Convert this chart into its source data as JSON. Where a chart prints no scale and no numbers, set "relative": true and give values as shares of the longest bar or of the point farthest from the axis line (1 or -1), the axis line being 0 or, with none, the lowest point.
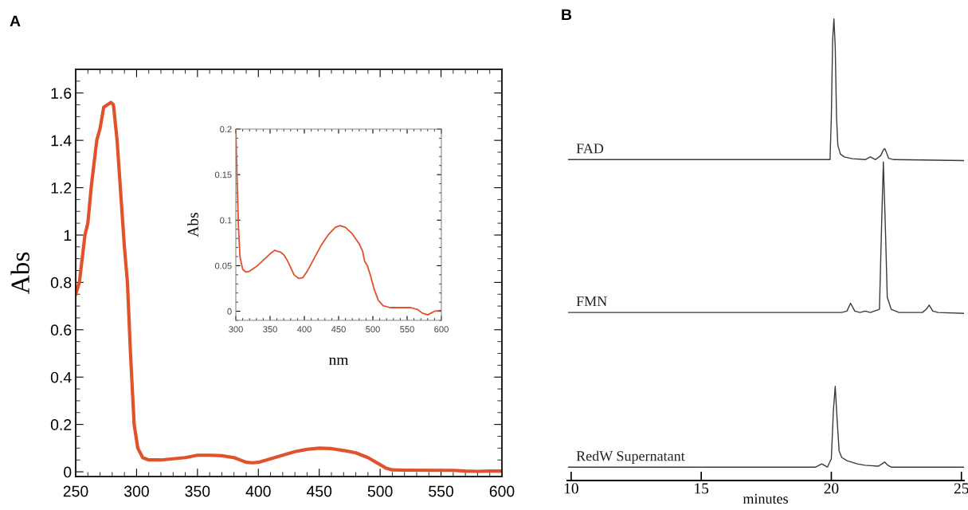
{
  "chart_data": [
    {
      "type": "line",
      "title": "A",
      "ylabel": "Abs",
      "xlim": [
        250,
        600
      ],
      "xticks": [
        250,
        300,
        350,
        400,
        450,
        500,
        550,
        600
      ],
      "ylim": [
        -0.02,
        1.7
      ],
      "yticks": [
        0,
        0.2,
        0.4,
        0.6,
        0.8,
        1,
        1.2,
        1.4,
        1.6
      ],
      "grid": false,
      "legend": false,
      "series": [
        {
          "color": "#e0522a",
          "x": [
            250,
            253,
            257.6,
            260,
            262.7,
            265,
            267.3,
            270,
            273,
            276,
            279,
            281,
            284,
            286,
            288,
            290,
            292.5,
            295,
            298,
            301,
            305,
            310,
            320,
            330,
            340,
            350,
            360,
            370,
            380,
            390,
            395,
            400,
            410,
            420,
            430,
            440,
            450,
            460,
            470,
            480,
            490,
            500,
            505,
            510,
            520,
            550,
            560,
            570,
            580,
            590,
            600
          ],
          "values": [
            0.75,
            0.8,
            1.0,
            1.05,
            1.2,
            1.3,
            1.4,
            1.45,
            1.54,
            1.55,
            1.56,
            1.55,
            1.4,
            1.25,
            1.1,
            0.95,
            0.8,
            0.5,
            0.2,
            0.1,
            0.06,
            0.05,
            0.05,
            0.055,
            0.06,
            0.07,
            0.07,
            0.068,
            0.06,
            0.04,
            0.038,
            0.04,
            0.055,
            0.07,
            0.085,
            0.095,
            0.1,
            0.098,
            0.09,
            0.08,
            0.06,
            0.03,
            0.015,
            0.008,
            0.007,
            0.006,
            0.006,
            0.003,
            0.002,
            0.003,
            0.003
          ]
        }
      ]
    },
    {
      "type": "line",
      "xlabel": "nm",
      "ylabel": "Abs",
      "xlim": [
        300,
        600
      ],
      "xticks": [
        300,
        350,
        400,
        450,
        500,
        550,
        600
      ],
      "ylim": [
        -0.01,
        0.2
      ],
      "yticks": [
        0,
        0.05,
        0.1,
        0.15,
        0.2
      ],
      "grid": false,
      "legend": false,
      "series": [
        {
          "color": "#e0522a",
          "x": [
            300,
            302,
            304,
            306,
            310,
            315,
            320,
            330,
            340,
            350,
            357,
            360,
            365,
            370,
            375,
            380,
            385,
            392,
            398,
            405,
            415,
            425,
            435,
            445,
            452,
            460,
            470,
            480,
            485,
            488,
            492,
            497,
            502,
            508,
            515,
            525,
            540,
            555,
            565,
            572,
            580,
            585,
            590,
            600
          ],
          "values": [
            0.2,
            0.14,
            0.09,
            0.06,
            0.046,
            0.043,
            0.044,
            0.049,
            0.056,
            0.063,
            0.067,
            0.066,
            0.065,
            0.062,
            0.056,
            0.048,
            0.04,
            0.036,
            0.037,
            0.045,
            0.059,
            0.073,
            0.084,
            0.092,
            0.094,
            0.092,
            0.085,
            0.074,
            0.066,
            0.055,
            0.05,
            0.038,
            0.024,
            0.012,
            0.006,
            0.004,
            0.004,
            0.004,
            0.002,
            -0.002,
            -0.004,
            -0.002,
            0.0,
            0.001
          ]
        }
      ]
    },
    {
      "type": "line",
      "title": "B",
      "xlabel": "minutes",
      "relative": true,
      "xlim": [
        9.85,
        25.1
      ],
      "xticks": [
        10,
        15,
        20,
        25
      ],
      "tick_labels": "x",
      "grid": false,
      "legend": false,
      "series": [
        {
          "name": "FAD",
          "color": "#3a3a3a",
          "x": [
            9.9,
            15,
            19.8,
            19.95,
            20.0,
            20.05,
            20.1,
            20.15,
            20.2,
            20.25,
            20.35,
            20.5,
            20.8,
            21.3,
            21.5,
            21.7,
            21.9,
            22.0,
            22.05,
            22.1,
            22.2,
            22.4,
            25.1
          ],
          "values": [
            0.695,
            0.695,
            0.695,
            0.695,
            0.787,
            0.954,
            1.0,
            0.939,
            0.787,
            0.726,
            0.707,
            0.701,
            0.697,
            0.695,
            0.701,
            0.695,
            0.704,
            0.716,
            0.719,
            0.713,
            0.698,
            0.695,
            0.693
          ]
        },
        {
          "name": "FMN",
          "color": "#3a3a3a",
          "x": [
            9.9,
            15,
            20.4,
            20.6,
            20.74,
            20.9,
            21.1,
            21.3,
            21.5,
            21.85,
            21.92,
            22.0,
            22.08,
            22.15,
            22.3,
            22.6,
            23.5,
            23.65,
            23.76,
            23.9,
            24.1,
            25.1
          ],
          "values": [
            0.364,
            0.364,
            0.364,
            0.367,
            0.384,
            0.367,
            0.364,
            0.367,
            0.364,
            0.371,
            0.527,
            0.69,
            0.543,
            0.397,
            0.371,
            0.364,
            0.364,
            0.371,
            0.38,
            0.367,
            0.364,
            0.362
          ]
        },
        {
          "name": "RedW Supernatant",
          "color": "#3a3a3a",
          "x": [
            9.9,
            15,
            19.4,
            19.63,
            19.85,
            20.0,
            20.08,
            20.15,
            20.22,
            20.3,
            20.4,
            20.6,
            21.0,
            21.3,
            21.8,
            21.95,
            22.05,
            22.15,
            22.3,
            25.1
          ],
          "values": [
            0.029,
            0.029,
            0.029,
            0.036,
            0.029,
            0.047,
            0.152,
            0.204,
            0.134,
            0.064,
            0.05,
            0.043,
            0.036,
            0.033,
            0.031,
            0.036,
            0.04,
            0.034,
            0.029,
            0.029
          ]
        }
      ]
    }
  ]
}
